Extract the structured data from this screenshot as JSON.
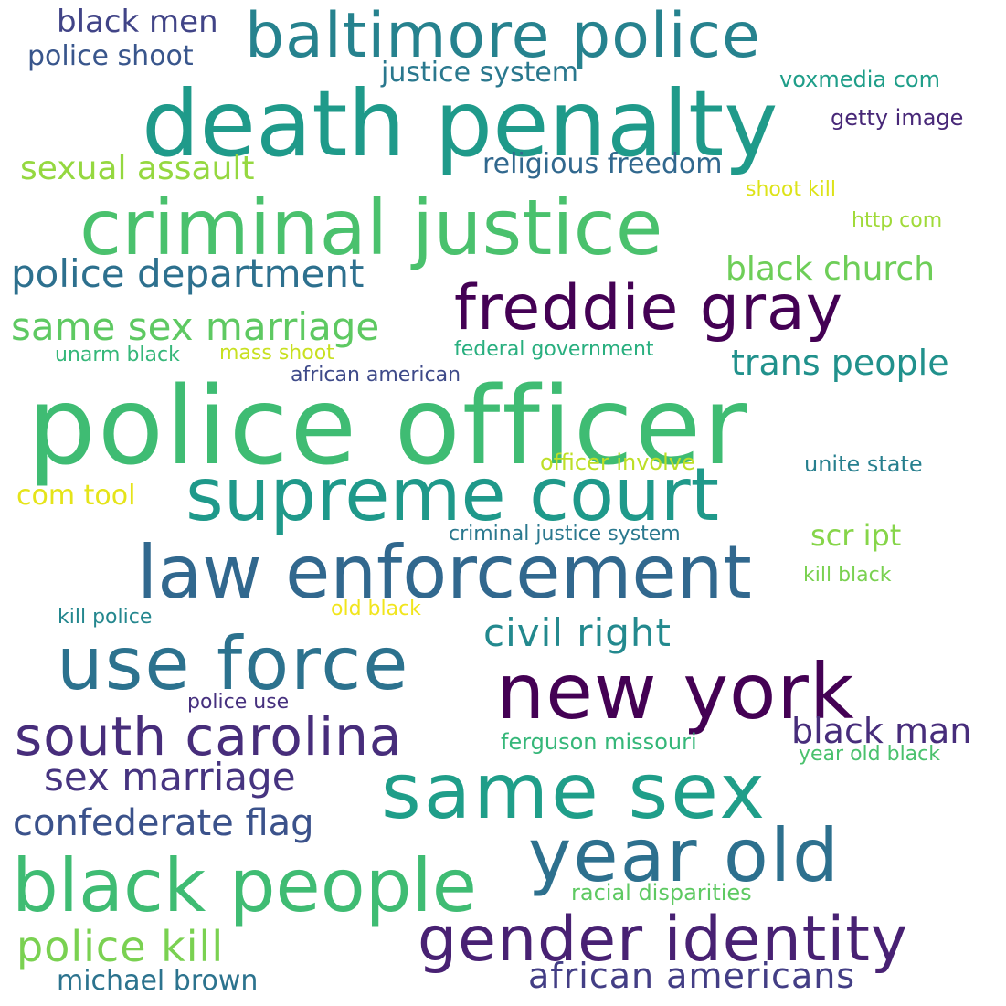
{
  "words": [
    {
      "text": "police officer",
      "color": "#3fbc73"
    },
    {
      "text": "death penalty",
      "color": "#1f9a8a"
    },
    {
      "text": "criminal justice",
      "color": "#4ac16d"
    },
    {
      "text": "baltimore police",
      "color": "#26828e"
    },
    {
      "text": "freddie gray",
      "color": "#440154"
    },
    {
      "text": "supreme court",
      "color": "#1f998a"
    },
    {
      "text": "law enforcement",
      "color": "#31688e"
    },
    {
      "text": "new york",
      "color": "#440154"
    },
    {
      "text": "use force",
      "color": "#2c728e"
    },
    {
      "text": "same sex",
      "color": "#1f9e89"
    },
    {
      "text": "black people",
      "color": "#3fbc73"
    },
    {
      "text": "year old",
      "color": "#2d708e"
    },
    {
      "text": "gender identity",
      "color": "#482173"
    },
    {
      "text": "south carolina",
      "color": "#472d7b"
    },
    {
      "text": "police department",
      "color": "#2d708e"
    },
    {
      "text": "same sex marriage",
      "color": "#5ec962"
    },
    {
      "text": "sex marriage",
      "color": "#463480"
    },
    {
      "text": "confederate flag",
      "color": "#3b528b"
    },
    {
      "text": "civil right",
      "color": "#23898e"
    },
    {
      "text": "black man",
      "color": "#472d7b"
    },
    {
      "text": "police kill",
      "color": "#7ad151"
    },
    {
      "text": "african americans",
      "color": "#433e85"
    },
    {
      "text": "sexual assault",
      "color": "#95d840"
    },
    {
      "text": "black men",
      "color": "#414487"
    },
    {
      "text": "police shoot",
      "color": "#39568c"
    },
    {
      "text": "justice system",
      "color": "#2a788e"
    },
    {
      "text": "religious freedom",
      "color": "#31688e"
    },
    {
      "text": "black church",
      "color": "#6ece58"
    },
    {
      "text": "trans people",
      "color": "#21918c"
    },
    {
      "text": "voxmedia com",
      "color": "#1f9e89"
    },
    {
      "text": "getty image",
      "color": "#482878"
    },
    {
      "text": "shoot kill",
      "color": "#dde318"
    },
    {
      "text": "http com",
      "color": "#a0da39"
    },
    {
      "text": "unarm black",
      "color": "#35b779"
    },
    {
      "text": "mass shoot",
      "color": "#c8e020"
    },
    {
      "text": "federal government",
      "color": "#29af7f"
    },
    {
      "text": "african american",
      "color": "#3e4a89"
    },
    {
      "text": "officer involve",
      "color": "#bddf26"
    },
    {
      "text": "unite state",
      "color": "#277f8e"
    },
    {
      "text": "com tool",
      "color": "#e5e419"
    },
    {
      "text": "criminal justice system",
      "color": "#2a788e"
    },
    {
      "text": "scr ipt",
      "color": "#86d549"
    },
    {
      "text": "kill black",
      "color": "#7ad151"
    },
    {
      "text": "old black",
      "color": "#f1e51d"
    },
    {
      "text": "kill police",
      "color": "#24878e"
    },
    {
      "text": "police use",
      "color": "#46307e"
    },
    {
      "text": "ferguson missouri",
      "color": "#35b779"
    },
    {
      "text": "year old black",
      "color": "#4ac16d"
    },
    {
      "text": "racial disparities",
      "color": "#5ec962"
    },
    {
      "text": "michael brown",
      "color": "#2c738e"
    }
  ]
}
